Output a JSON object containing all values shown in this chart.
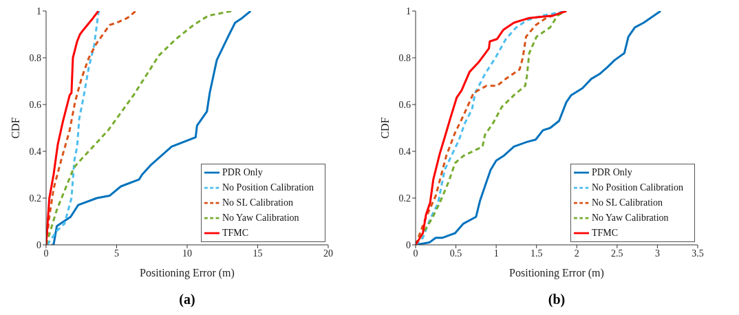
{
  "chart_data": [
    {
      "type": "line",
      "xlabel": "Positioning Error (m)",
      "ylabel": "CDF",
      "xlim": [
        0,
        20
      ],
      "xticks": [
        0,
        5,
        10,
        15,
        20
      ],
      "ylim": [
        0,
        1
      ],
      "yticks": [
        0,
        0.2,
        0.4,
        0.6,
        0.8,
        1
      ],
      "legend": "bottom right",
      "annotations": [
        "(a)"
      ],
      "series": [
        {
          "name": "PDR Only",
          "color": "#0072bd",
          "line_style": "solid",
          "x": [
            0.38,
            0.53,
            0.76,
            1.74,
            2.27,
            3.6,
            4.5,
            5.3,
            6.6,
            6.8,
            7.4,
            8.9,
            10.6,
            10.7,
            11.4,
            11.6,
            12.1,
            12.9,
            13.4,
            13.9,
            14.5
          ],
          "values": [
            0,
            0,
            0.08,
            0.12,
            0.17,
            0.2,
            0.21,
            0.25,
            0.28,
            0.3,
            0.34,
            0.42,
            0.46,
            0.51,
            0.57,
            0.65,
            0.79,
            0.89,
            0.95,
            0.97,
            1
          ]
        },
        {
          "name": "No Position Calibration",
          "color": "#4dbeee",
          "line_style": "dashed",
          "x": [
            0.08,
            0.76,
            1.3,
            1.8,
            2.0,
            2.2,
            2.35,
            2.65,
            3.03,
            3.4,
            3.7,
            3.76
          ],
          "values": [
            0,
            0.06,
            0.09,
            0.2,
            0.36,
            0.42,
            0.54,
            0.63,
            0.76,
            0.85,
            0.99,
            1
          ]
        },
        {
          "name": "No SL Calibration",
          "color": "#d95319",
          "line_style": "dashed",
          "x": [
            0,
            0.23,
            0.53,
            1.06,
            1.67,
            2.05,
            2.5,
            3.03,
            3.56,
            4.5,
            5.0,
            5.76,
            6.36
          ],
          "values": [
            0,
            0.12,
            0.24,
            0.36,
            0.49,
            0.61,
            0.71,
            0.8,
            0.86,
            0.94,
            0.95,
            0.97,
            1
          ]
        },
        {
          "name": "No Yaw Calibration",
          "color": "#77ac30",
          "line_style": "dashed",
          "x": [
            0,
            0.76,
            1.9,
            2.1,
            4.4,
            6.2,
            8.0,
            9.2,
            10.45,
            11.5,
            13.2
          ],
          "values": [
            0,
            0.15,
            0.32,
            0.34,
            0.49,
            0.64,
            0.81,
            0.88,
            0.94,
            0.98,
            1
          ]
        },
        {
          "name": "TFMC",
          "color": "#ff0000",
          "line_style": "solid",
          "x": [
            0,
            0.23,
            0.53,
            0.83,
            1.2,
            1.67,
            1.8,
            1.9,
            2.2,
            2.4,
            2.65,
            3.33,
            3.7
          ],
          "values": [
            0,
            0.2,
            0.3,
            0.43,
            0.53,
            0.64,
            0.65,
            0.8,
            0.87,
            0.9,
            0.92,
            0.97,
            1
          ]
        }
      ]
    },
    {
      "type": "line",
      "xlabel": "Positioning Error (m)",
      "ylabel": "CDF",
      "xlim": [
        0,
        3.5
      ],
      "xticks": [
        0,
        0.5,
        1,
        1.5,
        2,
        2.5,
        3,
        3.5
      ],
      "ylim": [
        0,
        1
      ],
      "yticks": [
        0,
        0.2,
        0.4,
        0.6,
        0.8,
        1
      ],
      "legend": "bottom right",
      "annotations": [
        "(b)"
      ],
      "series": [
        {
          "name": "PDR Only",
          "color": "#0072bd",
          "line_style": "solid",
          "x": [
            0,
            0.17,
            0.25,
            0.33,
            0.41,
            0.49,
            0.59,
            0.75,
            0.8,
            0.87,
            0.93,
            1.0,
            1.09,
            1.22,
            1.38,
            1.49,
            1.58,
            1.67,
            1.78,
            1.87,
            1.93,
            2.07,
            2.18,
            2.28,
            2.38,
            2.47,
            2.59,
            2.64,
            2.72,
            2.83,
            3.04
          ],
          "values": [
            0,
            0.01,
            0.03,
            0.03,
            0.04,
            0.05,
            0.09,
            0.12,
            0.19,
            0.26,
            0.32,
            0.36,
            0.38,
            0.42,
            0.44,
            0.45,
            0.49,
            0.5,
            0.53,
            0.61,
            0.64,
            0.67,
            0.71,
            0.73,
            0.76,
            0.79,
            0.82,
            0.89,
            0.93,
            0.95,
            1
          ]
        },
        {
          "name": "No Position Calibration",
          "color": "#4dbeee",
          "line_style": "dashed",
          "x": [
            0,
            0.09,
            0.18,
            0.28,
            0.36,
            0.43,
            0.54,
            0.61,
            0.7,
            0.74,
            0.86,
            0.99,
            1.12,
            1.25,
            1.38,
            1.57,
            1.87
          ],
          "values": [
            0,
            0.03,
            0.11,
            0.18,
            0.32,
            0.37,
            0.45,
            0.52,
            0.58,
            0.65,
            0.73,
            0.8,
            0.88,
            0.93,
            0.96,
            0.98,
            1
          ]
        },
        {
          "name": "No SL Calibration",
          "color": "#d95319",
          "line_style": "dashed",
          "x": [
            0,
            0.12,
            0.25,
            0.38,
            0.49,
            0.59,
            0.72,
            0.88,
            1.01,
            1.12,
            1.29,
            1.33,
            1.37,
            1.49,
            1.62,
            1.87
          ],
          "values": [
            0,
            0.11,
            0.21,
            0.38,
            0.48,
            0.55,
            0.65,
            0.68,
            0.68,
            0.71,
            0.75,
            0.8,
            0.89,
            0.94,
            0.97,
            1
          ]
        },
        {
          "name": "No Yaw Calibration",
          "color": "#77ac30",
          "line_style": "dashed",
          "x": [
            0,
            0.09,
            0.2,
            0.3,
            0.41,
            0.49,
            0.59,
            0.83,
            0.86,
            0.96,
            1.07,
            1.22,
            1.36,
            1.38,
            1.41,
            1.5,
            1.67,
            1.76,
            1.86
          ],
          "values": [
            0,
            0.05,
            0.11,
            0.18,
            0.27,
            0.35,
            0.38,
            0.42,
            0.47,
            0.52,
            0.59,
            0.64,
            0.68,
            0.72,
            0.82,
            0.89,
            0.93,
            0.98,
            1
          ]
        },
        {
          "name": "TFMC",
          "color": "#ff0000",
          "line_style": "solid",
          "x": [
            0,
            0.09,
            0.13,
            0.18,
            0.22,
            0.3,
            0.37,
            0.43,
            0.51,
            0.57,
            0.67,
            0.78,
            0.91,
            0.92,
            1.01,
            1.09,
            1.22,
            1.41,
            1.7,
            1.87
          ],
          "values": [
            0,
            0.05,
            0.13,
            0.18,
            0.28,
            0.39,
            0.47,
            0.54,
            0.63,
            0.66,
            0.74,
            0.78,
            0.84,
            0.87,
            0.88,
            0.92,
            0.95,
            0.97,
            0.98,
            1
          ]
        }
      ]
    }
  ]
}
